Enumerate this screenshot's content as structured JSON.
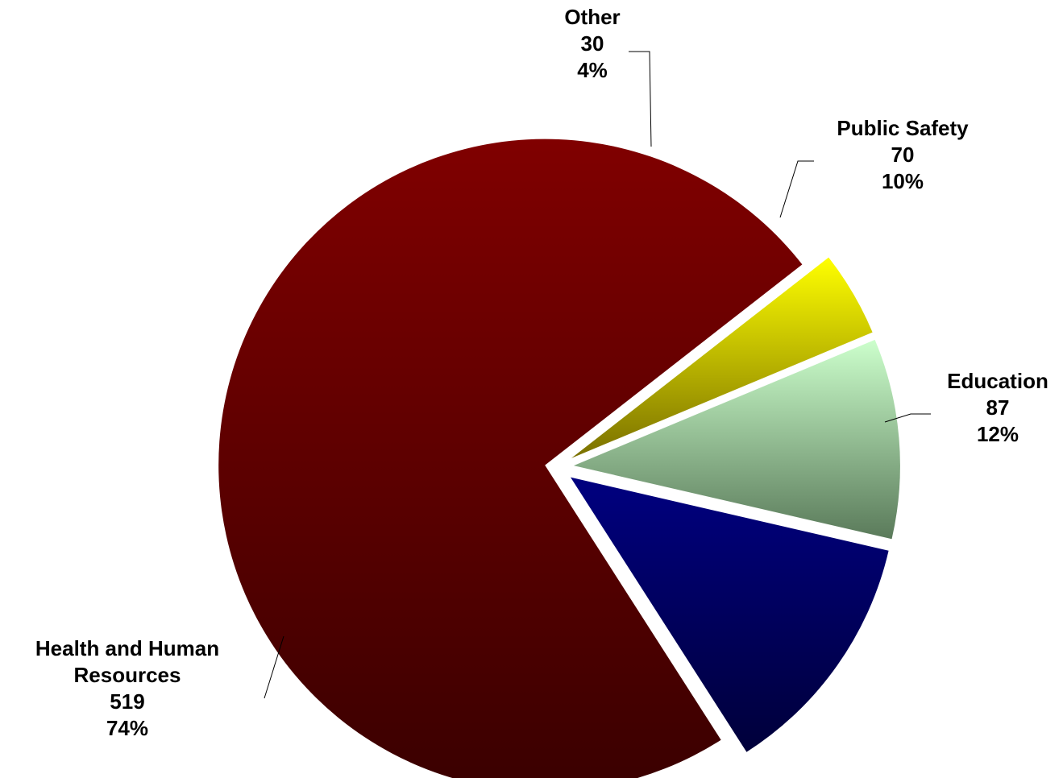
{
  "chart_data": {
    "type": "pie",
    "slices": [
      {
        "label": "Education",
        "label_lines": [
          "Education"
        ],
        "value": 87,
        "value_label": "87",
        "percent_label": "12%",
        "color_top": "#000080",
        "color_bottom": "#00003a"
      },
      {
        "label": "Health and Human Resources",
        "label_lines": [
          "Health and Human",
          "Resources"
        ],
        "value": 519,
        "value_label": "519",
        "percent_label": "74%",
        "color_top": "#800000",
        "color_bottom": "#3a0000"
      },
      {
        "label": "Other",
        "label_lines": [
          "Other"
        ],
        "value": 30,
        "value_label": "30",
        "percent_label": "4%",
        "color_top": "#ffff00",
        "color_bottom": "#7a7000"
      },
      {
        "label": "Public Safety",
        "label_lines": [
          "Public Safety"
        ],
        "value": 70,
        "value_label": "70",
        "percent_label": "10%",
        "color_top": "#ccffcc",
        "color_bottom": "#5a7a5a"
      }
    ],
    "exploded": true,
    "legend": "none"
  }
}
